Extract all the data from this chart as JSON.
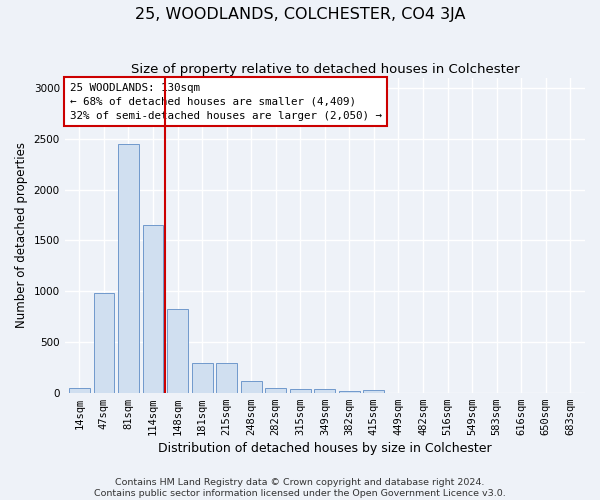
{
  "title": "25, WOODLANDS, COLCHESTER, CO4 3JA",
  "subtitle": "Size of property relative to detached houses in Colchester",
  "xlabel": "Distribution of detached houses by size in Colchester",
  "ylabel": "Number of detached properties",
  "footer_line1": "Contains HM Land Registry data © Crown copyright and database right 2024.",
  "footer_line2": "Contains public sector information licensed under the Open Government Licence v3.0.",
  "categories": [
    "14sqm",
    "47sqm",
    "81sqm",
    "114sqm",
    "148sqm",
    "181sqm",
    "215sqm",
    "248sqm",
    "282sqm",
    "315sqm",
    "349sqm",
    "382sqm",
    "415sqm",
    "449sqm",
    "482sqm",
    "516sqm",
    "549sqm",
    "583sqm",
    "616sqm",
    "650sqm",
    "683sqm"
  ],
  "values": [
    50,
    980,
    2450,
    1650,
    820,
    290,
    290,
    115,
    50,
    40,
    35,
    20,
    30,
    0,
    0,
    0,
    0,
    0,
    0,
    0,
    0
  ],
  "bar_color": "#d0dff0",
  "bar_edge_color": "#7099cc",
  "vline_x": 3.5,
  "vline_color": "#cc0000",
  "annotation_text": "25 WOODLANDS: 130sqm\n← 68% of detached houses are smaller (4,409)\n32% of semi-detached houses are larger (2,050) →",
  "annotation_box_color": "#ffffff",
  "annotation_box_edge": "#cc0000",
  "ylim": [
    0,
    3100
  ],
  "yticks": [
    0,
    500,
    1000,
    1500,
    2000,
    2500,
    3000
  ],
  "background_color": "#eef2f8",
  "grid_color": "#ffffff",
  "title_fontsize": 11.5,
  "subtitle_fontsize": 9.5,
  "axis_label_fontsize": 8.5,
  "tick_fontsize": 7.5,
  "footer_fontsize": 6.8
}
